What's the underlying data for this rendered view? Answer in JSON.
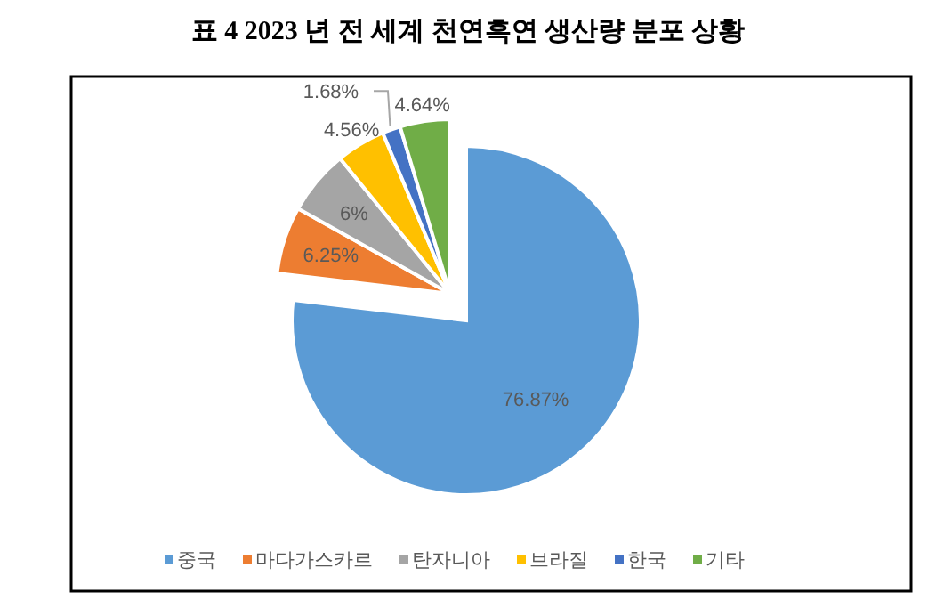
{
  "chart_data": {
    "type": "pie",
    "title": "표  4 2023 년  전  세계  천연흑연  생산량  분포  상황",
    "categories": [
      "중국",
      "마다가스카르",
      "탄자니아",
      "브라질",
      "한국",
      "기타"
    ],
    "values": [
      76.87,
      6.25,
      6,
      4.56,
      1.68,
      4.64
    ],
    "colors": [
      "#5b9bd5",
      "#ed7d31",
      "#a5a5a5",
      "#ffc000",
      "#4472c4",
      "#70ad47"
    ],
    "value_labels": [
      "76.87%",
      "6.25%",
      "6%",
      "4.56%",
      "1.68%",
      "4.64%"
    ],
    "legend": "bottom"
  }
}
